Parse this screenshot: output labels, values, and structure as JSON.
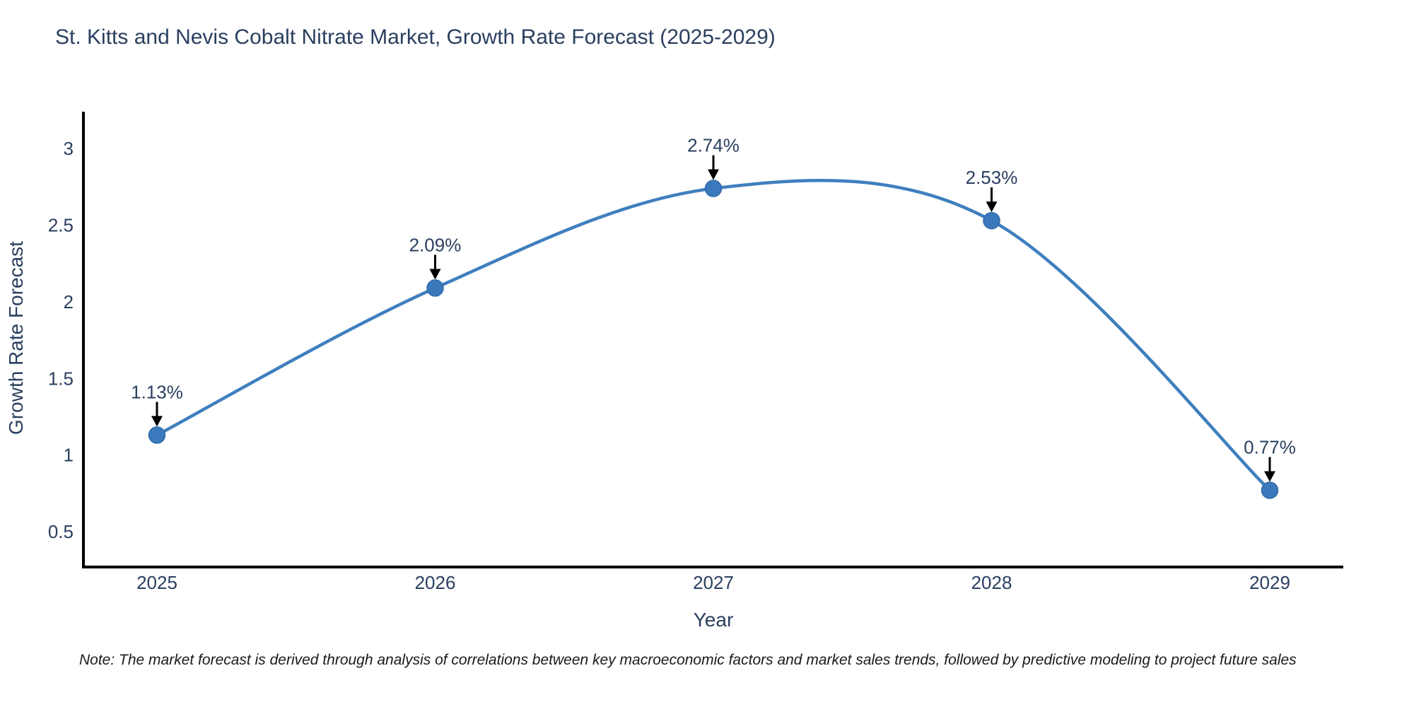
{
  "title": "St. Kitts and Nevis Cobalt Nitrate Market, Growth Rate Forecast (2025-2029)",
  "note": "Note: The market forecast is derived through analysis of correlations between key macroeconomic factors and market sales trends, followed by predictive modeling to project future sales",
  "chart_data": {
    "type": "line",
    "title": "St. Kitts and Nevis Cobalt Nitrate Market, Growth Rate Forecast (2025-2029)",
    "categories": [
      "2025",
      "2026",
      "2027",
      "2028",
      "2029"
    ],
    "values": [
      1.13,
      2.09,
      2.74,
      2.53,
      0.77
    ],
    "point_labels": [
      "1.13%",
      "2.09%",
      "2.74%",
      "2.53%",
      "0.77%"
    ],
    "series_name": "Growth Rate Forecast",
    "xlabel": "Year",
    "ylabel": "Growth Rate Forecast",
    "ylim": [
      0.269,
      3.241
    ],
    "y_ticks": [
      0.5,
      1,
      1.5,
      2,
      2.5,
      3
    ],
    "y_tick_labels": [
      "0.5",
      "1",
      "1.5",
      "2",
      "2.5",
      "3"
    ],
    "line_shape": "spline",
    "grid": false,
    "legend_position": "none",
    "colors": {
      "line": "#3f7fbe",
      "marker": "#3a7abc",
      "marker_edge": "#2f6aa8",
      "axis": "#000000",
      "text": "#2a3f5f",
      "annotation_arrow": "#000000"
    }
  }
}
